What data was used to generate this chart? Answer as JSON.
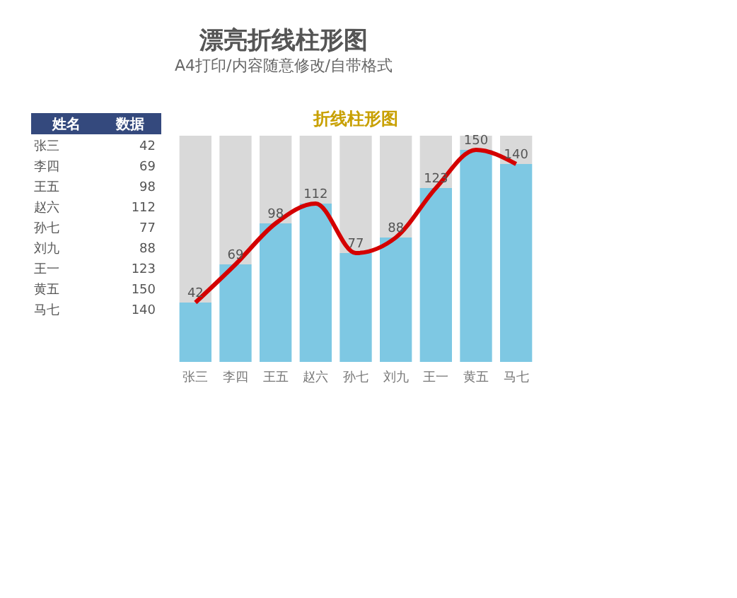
{
  "chart_data": [
    {
      "type": "other",
      "title": "漂亮折线柱形图",
      "subtitle": "A4打印/内容随意修改/自带格式",
      "annotations": [
        "姓名",
        "数据",
        "张三",
        "42",
        "李四",
        "69",
        "王五",
        "98",
        "赵六",
        "112",
        "孙七",
        "77",
        "刘九",
        "88",
        "王一",
        "123",
        "黄五",
        "150",
        "马七",
        "140"
      ]
    },
    {
      "type": "bar",
      "title": "折线柱形图",
      "stacked": true,
      "ylim": [
        0,
        160
      ],
      "categories": [
        "张三",
        "李四",
        "王五",
        "赵六",
        "孙七",
        "刘九",
        "王一",
        "黄五",
        "马七"
      ],
      "series": [
        {
          "color": "#7ec8e3",
          "values": [
            42,
            69,
            98,
            112,
            77,
            88,
            123,
            150,
            140
          ],
          "value_labels": [
            "42",
            "69",
            "98",
            "112",
            "77",
            "88",
            "123",
            "150",
            "140"
          ]
        },
        {
          "color": "#d9d9d9",
          "values": [
            118,
            91,
            62,
            48,
            83,
            72,
            37,
            10,
            20
          ]
        },
        {
          "type": "line",
          "color": "#d40000",
          "values": [
            42,
            69,
            98,
            112,
            77,
            88,
            123,
            150,
            140
          ]
        }
      ]
    }
  ]
}
